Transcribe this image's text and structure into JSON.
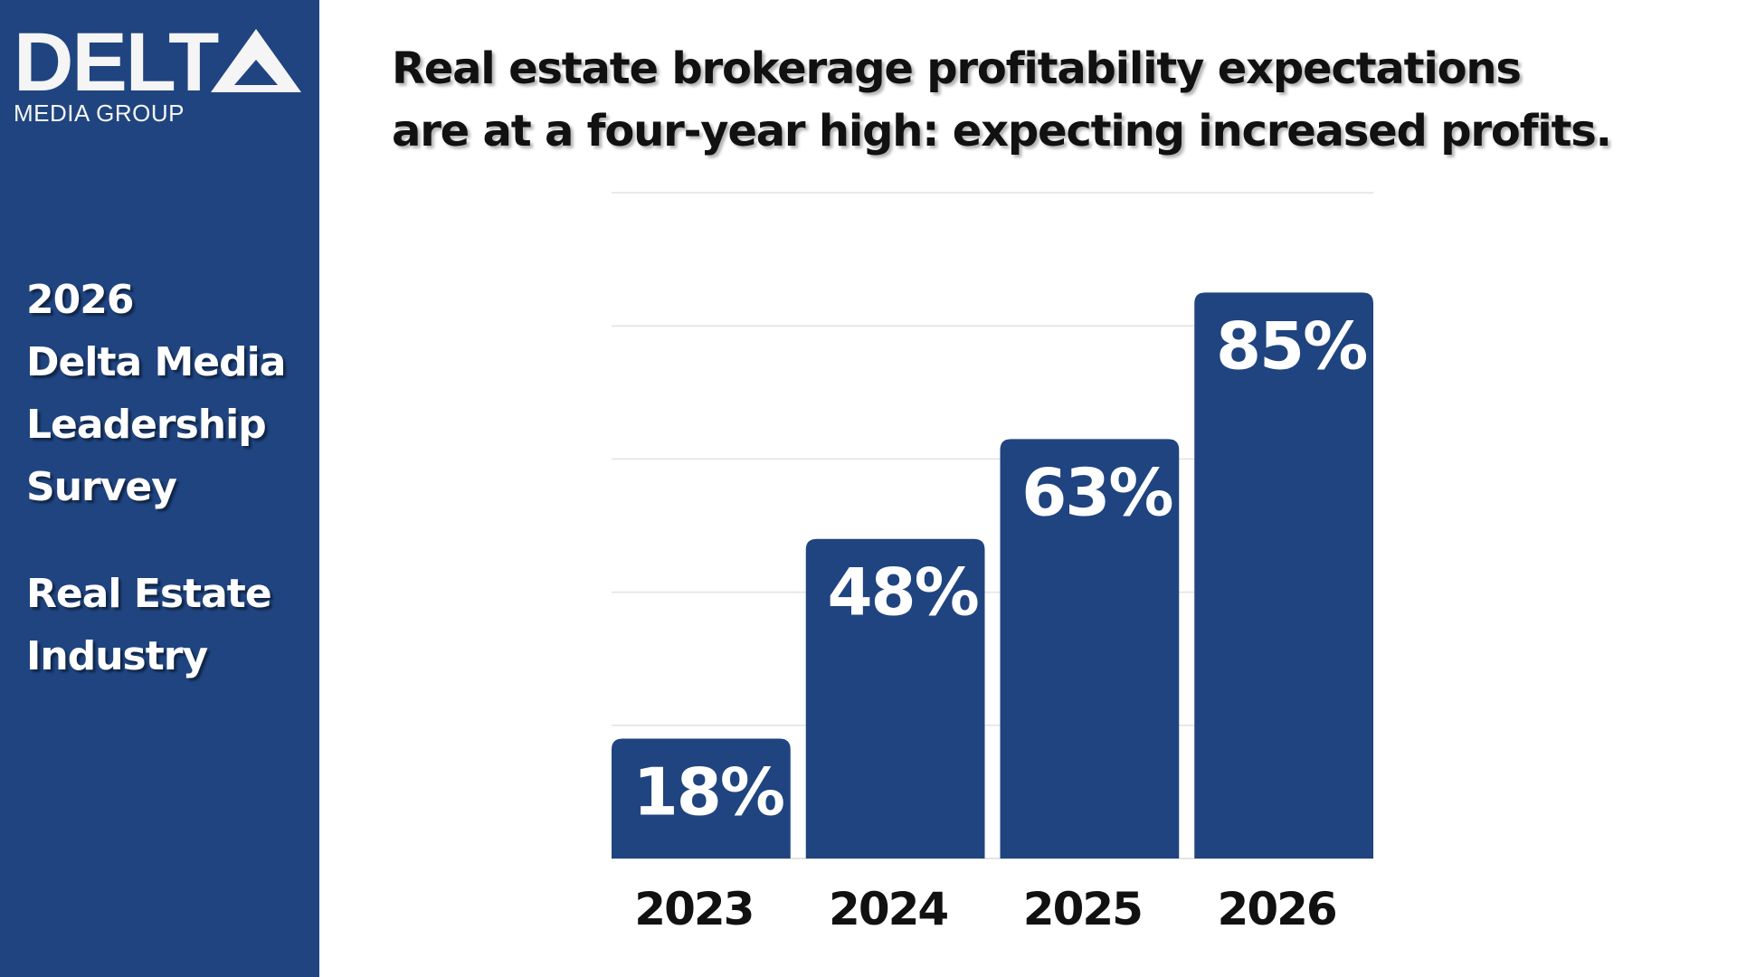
{
  "brand": {
    "logo_main": "DELTA",
    "logo_sub": "MEDIA GROUP",
    "color": "#1f4480"
  },
  "sidebar": {
    "survey_lines": [
      "2026",
      "Delta Media",
      "Leadership",
      "Survey"
    ],
    "segment_lines": [
      "Real Estate",
      "Industry"
    ]
  },
  "chart_data": {
    "type": "bar",
    "title": "Real estate brokerage profitability expectations are at a four-year high: expecting increased profits.",
    "title_lines": [
      "Real estate brokerage profitability expectations",
      "are at a four-year high: expecting increased profits."
    ],
    "categories": [
      "2023",
      "2024",
      "2025",
      "2026"
    ],
    "values": [
      18,
      48,
      63,
      85
    ],
    "data_labels": [
      "18%",
      "48%",
      "63%",
      "85%"
    ],
    "ylim": [
      0,
      100
    ],
    "grid": true,
    "bar_color": "#1f4480",
    "xlabel": "",
    "ylabel": ""
  }
}
